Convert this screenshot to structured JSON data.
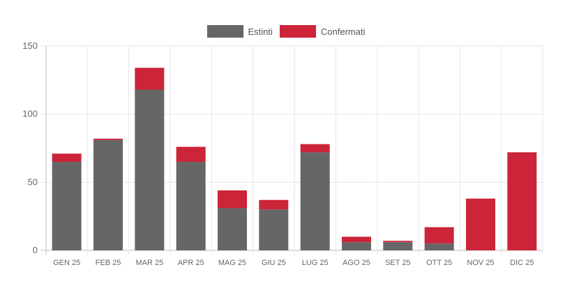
{
  "chart_data": {
    "type": "bar",
    "stacked": true,
    "categories": [
      "GEN 25",
      "FEB 25",
      "MAR 25",
      "APR 25",
      "MAG 25",
      "GIU 25",
      "LUG 25",
      "AGO 25",
      "SET 25",
      "OTT 25",
      "NOV 25",
      "DIC 25"
    ],
    "series": [
      {
        "name": "Estinti",
        "color": "#666666",
        "values": [
          65,
          81,
          118,
          65,
          31,
          30,
          72,
          6,
          6,
          5,
          0,
          0
        ]
      },
      {
        "name": "Confermati",
        "color": "#cc2438",
        "values": [
          6,
          1,
          16,
          11,
          13,
          7,
          6,
          4,
          1,
          12,
          38,
          72
        ]
      }
    ],
    "ylim": [
      0,
      150
    ],
    "yticks": [
      0,
      50,
      100,
      150
    ],
    "grid": true,
    "legend_position": "top-center",
    "title": "",
    "xlabel": "",
    "ylabel": ""
  }
}
